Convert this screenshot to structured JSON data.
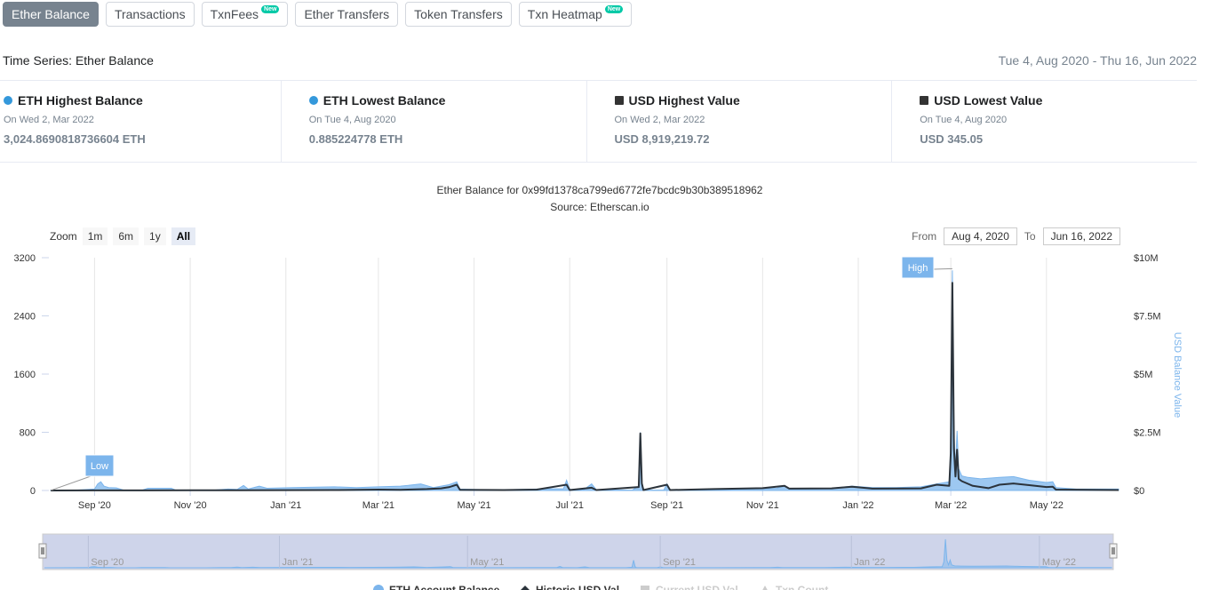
{
  "tabs": [
    {
      "label": "Ether Balance",
      "active": true,
      "new": false
    },
    {
      "label": "Transactions",
      "active": false,
      "new": false
    },
    {
      "label": "TxnFees",
      "active": false,
      "new": true
    },
    {
      "label": "Ether Transfers",
      "active": false,
      "new": false
    },
    {
      "label": "Token Transfers",
      "active": false,
      "new": false
    },
    {
      "label": "Txn Heatmap",
      "active": false,
      "new": true
    }
  ],
  "badge_text": "New",
  "section": {
    "title": "Time Series: Ether Balance",
    "date_range": "Tue 4, Aug 2020 - Thu 16, Jun 2022"
  },
  "stats": [
    {
      "label": "ETH Highest Balance",
      "date": "On Wed 2, Mar 2022",
      "value": "3,024.8690818736604 ETH",
      "marker": "dot",
      "color": "#3498db"
    },
    {
      "label": "ETH Lowest Balance",
      "date": "On Tue 4, Aug 2020",
      "value": "0.885224778 ETH",
      "marker": "dot",
      "color": "#3498db"
    },
    {
      "label": "USD Highest Value",
      "date": "On Wed 2, Mar 2022",
      "value": "USD 8,919,219.72",
      "marker": "square",
      "color": "#333333"
    },
    {
      "label": "USD Lowest Value",
      "date": "On Tue 4, Aug 2020",
      "value": "USD 345.05",
      "marker": "square",
      "color": "#333333"
    }
  ],
  "chart_header": {
    "title": "Ether Balance for 0x99fd1378ca799ed6772fe7bcdc9b30b389518962",
    "source": "Source: Etherscan.io"
  },
  "zoom": {
    "label": "Zoom",
    "buttons": [
      "1m",
      "6m",
      "1y",
      "All"
    ],
    "active": "All"
  },
  "range_selector": {
    "from_label": "From",
    "from_value": "Aug 4, 2020",
    "to_label": "To",
    "to_value": "Jun 16, 2022"
  },
  "colors": {
    "eth_series": "#7cb5ec",
    "usd_series": "#2b333b",
    "navigator_mask": "#c5cde6",
    "flag": "#7cb5ec"
  },
  "chart_data": {
    "type": "area",
    "x_range": [
      "2020-08-04",
      "2022-06-16"
    ],
    "x_ticks": [
      {
        "date": "2020-09-01",
        "label": "Sep '20"
      },
      {
        "date": "2020-11-01",
        "label": "Nov '20"
      },
      {
        "date": "2021-01-01",
        "label": "Jan '21"
      },
      {
        "date": "2021-03-01",
        "label": "Mar '21"
      },
      {
        "date": "2021-05-01",
        "label": "May '21"
      },
      {
        "date": "2021-07-01",
        "label": "Jul '21"
      },
      {
        "date": "2021-09-01",
        "label": "Sep '21"
      },
      {
        "date": "2021-11-01",
        "label": "Nov '21"
      },
      {
        "date": "2022-01-01",
        "label": "Jan '22"
      },
      {
        "date": "2022-03-01",
        "label": "Mar '22"
      },
      {
        "date": "2022-05-01",
        "label": "May '22"
      }
    ],
    "navigator_ticks": [
      {
        "date": "2020-09-01",
        "label": "Sep '20"
      },
      {
        "date": "2021-01-01",
        "label": "Jan '21"
      },
      {
        "date": "2021-05-01",
        "label": "May '21"
      },
      {
        "date": "2021-09-01",
        "label": "Sep '21"
      },
      {
        "date": "2022-01-01",
        "label": "Jan '22"
      },
      {
        "date": "2022-05-01",
        "label": "May '22"
      }
    ],
    "y_left": {
      "ticks": [
        "0",
        "800",
        "1600",
        "2400",
        "3200"
      ],
      "range": [
        0,
        3200
      ]
    },
    "y_right": {
      "ticks": [
        "$0",
        "$2.5M",
        "$5M",
        "$7.5M",
        "$10M"
      ],
      "range": [
        0,
        10000000
      ],
      "label": "USD Balance Value"
    },
    "grid": "vertical",
    "flags": [
      {
        "text": "Low",
        "date": "2020-08-04",
        "series": "eth"
      },
      {
        "text": "High",
        "date": "2022-03-02",
        "series": "eth"
      }
    ],
    "series": [
      {
        "name": "ETH Account Balance",
        "axis": "left",
        "type": "area",
        "points": [
          [
            "2020-08-04",
            1
          ],
          [
            "2020-08-20",
            5
          ],
          [
            "2020-09-01",
            20
          ],
          [
            "2020-09-03",
            90
          ],
          [
            "2020-09-05",
            120
          ],
          [
            "2020-09-07",
            60
          ],
          [
            "2020-09-10",
            40
          ],
          [
            "2020-09-15",
            35
          ],
          [
            "2020-09-20",
            2
          ],
          [
            "2020-10-01",
            3
          ],
          [
            "2020-10-05",
            30
          ],
          [
            "2020-10-20",
            30
          ],
          [
            "2020-10-23",
            2
          ],
          [
            "2020-11-15",
            3
          ],
          [
            "2020-11-25",
            20
          ],
          [
            "2020-12-01",
            15
          ],
          [
            "2020-12-05",
            70
          ],
          [
            "2020-12-08",
            20
          ],
          [
            "2020-12-15",
            60
          ],
          [
            "2020-12-20",
            30
          ],
          [
            "2021-01-05",
            40
          ],
          [
            "2021-01-20",
            45
          ],
          [
            "2021-02-01",
            50
          ],
          [
            "2021-02-15",
            40
          ],
          [
            "2021-03-01",
            50
          ],
          [
            "2021-03-15",
            60
          ],
          [
            "2021-03-20",
            70
          ],
          [
            "2021-03-28",
            90
          ],
          [
            "2021-04-05",
            40
          ],
          [
            "2021-04-15",
            80
          ],
          [
            "2021-04-20",
            120
          ],
          [
            "2021-04-22",
            20
          ],
          [
            "2021-05-10",
            10
          ],
          [
            "2021-05-20",
            8
          ],
          [
            "2021-06-10",
            20
          ],
          [
            "2021-06-27",
            25
          ],
          [
            "2021-06-29",
            140
          ],
          [
            "2021-07-01",
            15
          ],
          [
            "2021-07-10",
            10
          ],
          [
            "2021-07-15",
            90
          ],
          [
            "2021-07-18",
            10
          ],
          [
            "2021-08-10",
            5
          ],
          [
            "2021-08-14",
            60
          ],
          [
            "2021-08-15",
            800
          ],
          [
            "2021-08-16",
            100
          ],
          [
            "2021-08-17",
            5
          ],
          [
            "2021-08-30",
            5
          ],
          [
            "2021-09-01",
            90
          ],
          [
            "2021-09-03",
            5
          ],
          [
            "2021-10-01",
            10
          ],
          [
            "2021-11-01",
            25
          ],
          [
            "2021-11-10",
            30
          ],
          [
            "2021-11-15",
            60
          ],
          [
            "2021-11-18",
            20
          ],
          [
            "2021-12-15",
            30
          ],
          [
            "2021-12-28",
            60
          ],
          [
            "2022-01-10",
            40
          ],
          [
            "2022-01-25",
            40
          ],
          [
            "2022-02-10",
            50
          ],
          [
            "2022-02-20",
            90
          ],
          [
            "2022-02-28",
            120
          ],
          [
            "2022-03-01",
            600
          ],
          [
            "2022-03-02",
            3025
          ],
          [
            "2022-03-03",
            800
          ],
          [
            "2022-03-04",
            300
          ],
          [
            "2022-03-05",
            820
          ],
          [
            "2022-03-06",
            300
          ],
          [
            "2022-03-08",
            200
          ],
          [
            "2022-03-12",
            180
          ],
          [
            "2022-03-20",
            160
          ],
          [
            "2022-04-01",
            180
          ],
          [
            "2022-04-10",
            190
          ],
          [
            "2022-04-20",
            140
          ],
          [
            "2022-05-01",
            110
          ],
          [
            "2022-05-05",
            120
          ],
          [
            "2022-05-07",
            40
          ],
          [
            "2022-05-20",
            20
          ],
          [
            "2022-06-16",
            20
          ]
        ]
      },
      {
        "name": "Historic USD Val",
        "axis": "right",
        "type": "line",
        "points": [
          [
            "2020-08-04",
            345
          ],
          [
            "2020-09-01",
            5000
          ],
          [
            "2020-10-01",
            5000
          ],
          [
            "2020-11-01",
            6000
          ],
          [
            "2020-12-01",
            8000
          ],
          [
            "2021-01-01",
            15000
          ],
          [
            "2021-02-01",
            20000
          ],
          [
            "2021-03-01",
            40000
          ],
          [
            "2021-03-15",
            30000
          ],
          [
            "2021-04-01",
            60000
          ],
          [
            "2021-04-10",
            90000
          ],
          [
            "2021-04-15",
            140000
          ],
          [
            "2021-04-20",
            250000
          ],
          [
            "2021-04-22",
            30000
          ],
          [
            "2021-05-20",
            20000
          ],
          [
            "2021-06-10",
            40000
          ],
          [
            "2021-06-29",
            250000
          ],
          [
            "2021-07-01",
            20000
          ],
          [
            "2021-07-15",
            120000
          ],
          [
            "2021-07-18",
            20000
          ],
          [
            "2021-08-14",
            150000
          ],
          [
            "2021-08-15",
            2450000
          ],
          [
            "2021-08-16",
            300000
          ],
          [
            "2021-08-17",
            20000
          ],
          [
            "2021-09-01",
            250000
          ],
          [
            "2021-09-03",
            20000
          ],
          [
            "2021-10-01",
            60000
          ],
          [
            "2021-11-01",
            100000
          ],
          [
            "2021-11-15",
            200000
          ],
          [
            "2021-11-18",
            80000
          ],
          [
            "2021-12-15",
            90000
          ],
          [
            "2021-12-28",
            160000
          ],
          [
            "2022-01-10",
            80000
          ],
          [
            "2022-02-10",
            90000
          ],
          [
            "2022-02-20",
            250000
          ],
          [
            "2022-02-28",
            200000
          ],
          [
            "2022-03-01",
            1600000
          ],
          [
            "2022-03-02",
            8919220
          ],
          [
            "2022-03-03",
            1800000
          ],
          [
            "2022-03-04",
            600000
          ],
          [
            "2022-03-05",
            1750000
          ],
          [
            "2022-03-06",
            500000
          ],
          [
            "2022-03-08",
            400000
          ],
          [
            "2022-03-15",
            200000
          ],
          [
            "2022-03-25",
            100000
          ],
          [
            "2022-04-01",
            250000
          ],
          [
            "2022-04-10",
            300000
          ],
          [
            "2022-04-20",
            230000
          ],
          [
            "2022-05-01",
            150000
          ],
          [
            "2022-05-05",
            160000
          ],
          [
            "2022-05-07",
            40000
          ],
          [
            "2022-06-16",
            20000
          ]
        ]
      }
    ],
    "legend": [
      {
        "name": "ETH Account Balance",
        "symbol": "circle",
        "color": "#7cb5ec",
        "visible": true
      },
      {
        "name": "Historic USD Val",
        "symbol": "diamond",
        "color": "#2b333b",
        "visible": true
      },
      {
        "name": "Current USD Val",
        "symbol": "square",
        "color": "#cccccc",
        "visible": false
      },
      {
        "name": "Txn Count",
        "symbol": "triangle",
        "color": "#cccccc",
        "visible": false
      }
    ],
    "legend_placement": "bottom"
  }
}
